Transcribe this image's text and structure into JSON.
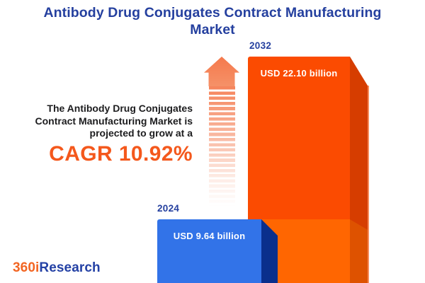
{
  "title": {
    "line1": "Antibody Drug Conjugates Contract Manufacturing",
    "line2": "Market"
  },
  "intro": {
    "line1": "The Antibody Drug Conjugates",
    "line2": "Contract Manufacturing Market is",
    "line3": "projected to grow at a",
    "cagr": "CAGR 10.92%"
  },
  "chart_data": {
    "type": "bar",
    "title": "Antibody Drug Conjugates Contract Manufacturing Market",
    "categories": [
      "2024",
      "2032"
    ],
    "values": [
      9.64,
      22.1
    ],
    "unit": "USD billion",
    "labels": [
      "USD 9.64 billion",
      "USD 22.10 billion"
    ],
    "annotations": [
      "CAGR 10.92%"
    ],
    "ylim": [
      0,
      22.1
    ],
    "grid": false,
    "legend": false,
    "series_colors": [
      "#3273E8",
      "#FB4B01"
    ]
  },
  "logo": {
    "part1": "360i",
    "part2": "Research"
  },
  "icons": {
    "growth_arrow": "upward-dashed-arrow"
  },
  "colors": {
    "background": "#FFFFFF",
    "title-blue": "#25409F",
    "text-dark": "#1C1C1E",
    "cagr-orange": "#F4581C",
    "arrow-orange": "#F5845B",
    "arrow-head-top": "#F5794C",
    "arrow-head-bottom": "#F59168",
    "bar2032-face": "#FB4B01",
    "bar2032-face-lower": "#FF6601",
    "bar2032-side": "#D63D00",
    "bar2032-side-lower": "#DE5200",
    "bar2032-edge": "#F68149",
    "bar2024-face": "#3273E8",
    "bar2024-side": "#0A2F8C",
    "value-label": "#FFFFFF",
    "logo-orange": "#F26522",
    "logo-blue": "#2441A5"
  }
}
